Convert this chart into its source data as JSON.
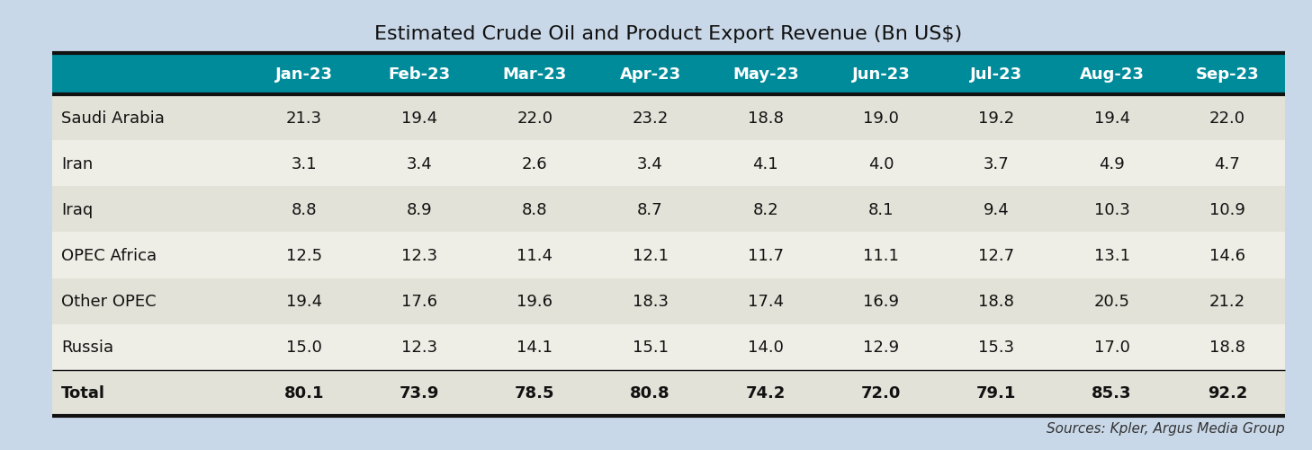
{
  "title": "Estimated Crude Oil and Product Export Revenue (Bn US$)",
  "source": "Sources: Kpler, Argus Media Group",
  "columns": [
    "",
    "Jan-23",
    "Feb-23",
    "Mar-23",
    "Apr-23",
    "May-23",
    "Jun-23",
    "Jul-23",
    "Aug-23",
    "Sep-23"
  ],
  "rows": [
    {
      "label": "Saudi Arabia",
      "values": [
        "21.3",
        "19.4",
        "22.0",
        "23.2",
        "18.8",
        "19.0",
        "19.2",
        "19.4",
        "22.0"
      ],
      "bold": false
    },
    {
      "label": "Iran",
      "values": [
        "3.1",
        "3.4",
        "2.6",
        "3.4",
        "4.1",
        "4.0",
        "3.7",
        "4.9",
        "4.7"
      ],
      "bold": false
    },
    {
      "label": "Iraq",
      "values": [
        "8.8",
        "8.9",
        "8.8",
        "8.7",
        "8.2",
        "8.1",
        "9.4",
        "10.3",
        "10.9"
      ],
      "bold": false
    },
    {
      "label": "OPEC Africa",
      "values": [
        "12.5",
        "12.3",
        "11.4",
        "12.1",
        "11.7",
        "11.1",
        "12.7",
        "13.1",
        "14.6"
      ],
      "bold": false
    },
    {
      "label": "Other OPEC",
      "values": [
        "19.4",
        "17.6",
        "19.6",
        "18.3",
        "17.4",
        "16.9",
        "18.8",
        "20.5",
        "21.2"
      ],
      "bold": false
    },
    {
      "label": "Russia",
      "values": [
        "15.0",
        "12.3",
        "14.1",
        "15.1",
        "14.0",
        "12.9",
        "15.3",
        "17.0",
        "18.8"
      ],
      "bold": false
    },
    {
      "label": "Total",
      "values": [
        "80.1",
        "73.9",
        "78.5",
        "80.8",
        "74.2",
        "72.0",
        "79.1",
        "85.3",
        "92.2"
      ],
      "bold": true
    }
  ],
  "header_bg": "#008B9B",
  "header_text": "#FFFFFF",
  "bg_color": "#C9D8E8",
  "row_colors_odd": "#E2E2D8",
  "row_colors_even": "#EEEEE6",
  "border_color": "#111111",
  "title_fontsize": 16,
  "header_fontsize": 13,
  "cell_fontsize": 13,
  "source_fontsize": 11,
  "fig_width": 14.58,
  "fig_height": 5.02,
  "dpi": 100
}
